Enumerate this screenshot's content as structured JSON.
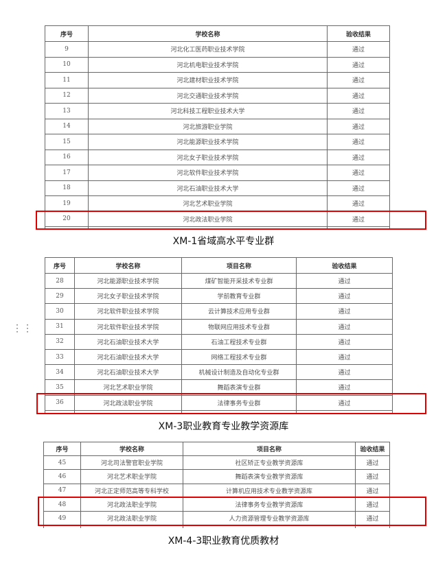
{
  "tables": [
    {
      "caption": "XM-1省域高水平专业群",
      "headers": [
        "序号",
        "学校名称",
        "验收结果"
      ],
      "rows": [
        [
          "9",
          "河北化工医药职业技术学院",
          "通过"
        ],
        [
          "10",
          "河北机电职业技术学院",
          "通过"
        ],
        [
          "11",
          "河北建材职业技术学院",
          "通过"
        ],
        [
          "12",
          "河北交通职业技术学院",
          "通过"
        ],
        [
          "13",
          "河北科技工程职业技术大学",
          "通过"
        ],
        [
          "14",
          "河北旅游职业学院",
          "通过"
        ],
        [
          "15",
          "河北能源职业技术学院",
          "通过"
        ],
        [
          "16",
          "河北女子职业技术学院",
          "通过"
        ],
        [
          "17",
          "河北软件职业技术学院",
          "通过"
        ],
        [
          "18",
          "河北石油职业技术大学",
          "通过"
        ],
        [
          "19",
          "河北艺术职业学院",
          "通过"
        ],
        [
          "20",
          "河北政法职业学院",
          "通过"
        ]
      ]
    },
    {
      "caption": "XM-3职业教育专业教学资源库",
      "headers": [
        "序号",
        "学校名称",
        "项目名称",
        "验收结果"
      ],
      "rows": [
        [
          "28",
          "河北能源职业技术学院",
          "煤矿智能开采技术专业群",
          "通过"
        ],
        [
          "29",
          "河北女子职业技术学院",
          "学前教育专业群",
          "通过"
        ],
        [
          "30",
          "河北软件职业技术学院",
          "云计算技术应用专业群",
          "通过"
        ],
        [
          "31",
          "河北软件职业技术学院",
          "物联网应用技术专业群",
          "通过"
        ],
        [
          "32",
          "河北石油职业技术大学",
          "石油工程技术专业群",
          "通过"
        ],
        [
          "33",
          "河北石油职业技术大学",
          "网络工程技术专业群",
          "通过"
        ],
        [
          "34",
          "河北石油职业技术大学",
          "机械设计制造及自动化专业群",
          "通过"
        ],
        [
          "35",
          "河北艺术职业学院",
          "舞蹈表演专业群",
          "通过"
        ],
        [
          "36",
          "河北政法职业学院",
          "法律事务专业群",
          "通过"
        ]
      ]
    },
    {
      "caption": "XM-4-3职业教育优质教材",
      "headers": [
        "序号",
        "学校名称",
        "项目名称",
        "验收结果"
      ],
      "rows": [
        [
          "45",
          "河北司法警官职业学院",
          "社区矫正专业教学资源库",
          "通过"
        ],
        [
          "46",
          "河北艺术职业学院",
          "舞蹈表演专业教学资源库",
          "通过"
        ],
        [
          "47",
          "河北正定师范高等专科学校",
          "计算机应用技术专业教学资源库",
          "通过"
        ],
        [
          "48",
          "河北政法职业学院",
          "法律事务专业教学资源库",
          "通过"
        ],
        [
          "49",
          "河北政法职业学院",
          "人力资源管理专业教学资源库",
          "通过"
        ]
      ]
    }
  ],
  "highlight_color": "#e00000",
  "icons": {
    "drag_handle": "drag-handle-icon"
  }
}
